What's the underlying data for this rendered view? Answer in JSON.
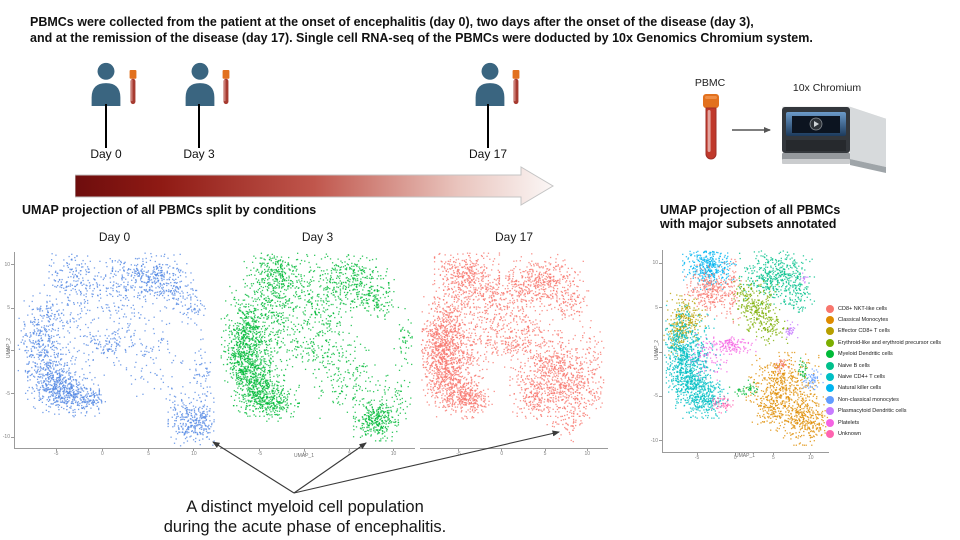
{
  "intro": {
    "line1": "PBMCs were collected from the patient at the onset of encephalitis (day 0), two days after the onset of the disease (day 3),",
    "line2": "and at the remission of the disease (day 17). Single cell RNA-seq of the PBMCs were doducted by 10x Genomics Chromium system."
  },
  "timeline": {
    "days": [
      {
        "label": "Day 0"
      },
      {
        "label": "Day 3"
      },
      {
        "label": "Day 17"
      }
    ]
  },
  "workflow": {
    "sample_label": "PBMC",
    "machine_label": "10x Chromium"
  },
  "split_section": {
    "title": "UMAP projection of all PBMCs split by conditions"
  },
  "annotated_section": {
    "line1": "UMAP projection of all PBMCs",
    "line2": "with major subsets annotated"
  },
  "annotation": {
    "line1": "A distinct myeloid cell population",
    "line2": "during the acute phase of encephalitis."
  },
  "legend": {
    "items": [
      {
        "label": "CD8+ NKT-like cells",
        "color": "#F8766D"
      },
      {
        "label": "Classical Monocytes",
        "color": "#DE8C00"
      },
      {
        "label": "Effector CD8+ T cells",
        "color": "#B79F00"
      },
      {
        "label": "Erythroid-like and erythroid precursor cells",
        "color": "#7CAE00"
      },
      {
        "label": "Myeloid Dendritic cells",
        "color": "#00BA38"
      },
      {
        "label": "Naive B cells",
        "color": "#00C08B"
      },
      {
        "label": "Naive CD4+ T cells",
        "color": "#00BFC4"
      },
      {
        "label": "Natural killer  cells",
        "color": "#00B4F0"
      },
      {
        "label": "Non-classical monocytes",
        "color": "#619CFF"
      },
      {
        "label": "Plasmacytoid Dendritic cells",
        "color": "#C77CFF"
      },
      {
        "label": "Platelets",
        "color": "#F564E3"
      },
      {
        "label": "Unknown",
        "color": "#FF64B0"
      }
    ]
  },
  "colors": {
    "day0_points": "#5488e4",
    "day3_points": "#00ba38",
    "day17_points": "#f8766d",
    "person_icon": "#3a6580",
    "tube_cap": "#e2711e",
    "tube_body": "#a63a30",
    "timeline_gradient_start": "#6e0d0d",
    "timeline_gradient_end": "#fbf7f6"
  },
  "chart_data": {
    "type": "scatter",
    "note": "UMAP embeddings; clusters given as [x,y,rx,ry,n(,color)] in normalized panel coords (y down)",
    "xlabel": "UMAP_1",
    "ylabel": "UMAP_2",
    "xticks": [
      "-5",
      "0",
      "5",
      "10"
    ],
    "xtick_pos": [
      0.205,
      0.435,
      0.665,
      0.89
    ],
    "yticks": [
      "10",
      "5",
      "0",
      "-5",
      "-10"
    ],
    "ytick_pos": [
      0.066,
      0.286,
      0.505,
      0.724,
      0.944
    ],
    "panels": [
      {
        "id": "day0",
        "title": "Day 0",
        "color": "#5488e4",
        "axes": {
          "left": true,
          "bottom": true
        },
        "clusters": [
          [
            0.29,
            0.12,
            0.07,
            0.055,
            110
          ],
          [
            0.45,
            0.1,
            0.09,
            0.055,
            55
          ],
          [
            0.68,
            0.13,
            0.085,
            0.055,
            300
          ],
          [
            0.8,
            0.21,
            0.05,
            0.045,
            90
          ],
          [
            0.88,
            0.28,
            0.035,
            0.04,
            45
          ],
          [
            0.3,
            0.25,
            0.055,
            0.07,
            75
          ],
          [
            0.16,
            0.34,
            0.05,
            0.07,
            110
          ],
          [
            0.12,
            0.45,
            0.045,
            0.07,
            110
          ],
          [
            0.14,
            0.56,
            0.05,
            0.07,
            150
          ],
          [
            0.19,
            0.66,
            0.055,
            0.06,
            260
          ],
          [
            0.27,
            0.72,
            0.065,
            0.05,
            280
          ],
          [
            0.35,
            0.76,
            0.05,
            0.035,
            110
          ],
          [
            0.33,
            0.45,
            0.13,
            0.12,
            110
          ],
          [
            0.47,
            0.47,
            0.055,
            0.03,
            70
          ],
          [
            0.57,
            0.3,
            0.08,
            0.08,
            65
          ],
          [
            0.5,
            0.2,
            0.05,
            0.05,
            40
          ],
          [
            0.65,
            0.45,
            0.06,
            0.06,
            40
          ],
          [
            0.71,
            0.6,
            0.08,
            0.08,
            50
          ],
          [
            0.93,
            0.62,
            0.03,
            0.1,
            65
          ],
          [
            0.9,
            0.87,
            0.06,
            0.055,
            280
          ],
          [
            0.81,
            0.79,
            0.05,
            0.05,
            40
          ]
        ]
      },
      {
        "id": "day3",
        "title": "Day 3",
        "color": "#00ba38",
        "axes": {
          "left": false,
          "bottom": true
        },
        "clusters": [
          [
            0.27,
            0.12,
            0.065,
            0.065,
            280
          ],
          [
            0.42,
            0.13,
            0.07,
            0.06,
            60
          ],
          [
            0.67,
            0.15,
            0.085,
            0.065,
            330
          ],
          [
            0.8,
            0.24,
            0.05,
            0.045,
            100
          ],
          [
            0.3,
            0.26,
            0.055,
            0.07,
            120
          ],
          [
            0.15,
            0.36,
            0.055,
            0.08,
            220
          ],
          [
            0.11,
            0.48,
            0.045,
            0.08,
            260
          ],
          [
            0.14,
            0.6,
            0.05,
            0.08,
            320
          ],
          [
            0.2,
            0.7,
            0.055,
            0.06,
            320
          ],
          [
            0.28,
            0.76,
            0.055,
            0.045,
            200
          ],
          [
            0.22,
            0.5,
            0.075,
            0.1,
            160
          ],
          [
            0.36,
            0.4,
            0.1,
            0.1,
            90
          ],
          [
            0.46,
            0.25,
            0.075,
            0.075,
            75
          ],
          [
            0.55,
            0.35,
            0.065,
            0.075,
            85
          ],
          [
            0.47,
            0.5,
            0.05,
            0.035,
            50
          ],
          [
            0.6,
            0.55,
            0.075,
            0.075,
            85
          ],
          [
            0.68,
            0.68,
            0.075,
            0.075,
            110
          ],
          [
            0.8,
            0.86,
            0.05,
            0.045,
            290
          ],
          [
            0.9,
            0.75,
            0.045,
            0.06,
            55
          ],
          [
            0.95,
            0.45,
            0.025,
            0.07,
            45
          ]
        ]
      },
      {
        "id": "day17",
        "title": "Day 17",
        "color": "#f8766d",
        "axes": {
          "left": false,
          "bottom": true
        },
        "clusters": [
          [
            0.25,
            0.12,
            0.075,
            0.07,
            420
          ],
          [
            0.38,
            0.22,
            0.05,
            0.055,
            90
          ],
          [
            0.65,
            0.15,
            0.095,
            0.065,
            380
          ],
          [
            0.8,
            0.25,
            0.05,
            0.045,
            90
          ],
          [
            0.15,
            0.35,
            0.06,
            0.08,
            260
          ],
          [
            0.1,
            0.48,
            0.05,
            0.085,
            280
          ],
          [
            0.13,
            0.62,
            0.055,
            0.075,
            300
          ],
          [
            0.2,
            0.72,
            0.06,
            0.055,
            260
          ],
          [
            0.28,
            0.76,
            0.05,
            0.04,
            140
          ],
          [
            0.19,
            0.52,
            0.075,
            0.095,
            260
          ],
          [
            0.33,
            0.42,
            0.1,
            0.095,
            120
          ],
          [
            0.45,
            0.33,
            0.065,
            0.065,
            120
          ],
          [
            0.52,
            0.22,
            0.05,
            0.05,
            70
          ],
          [
            0.47,
            0.48,
            0.05,
            0.03,
            60
          ],
          [
            0.58,
            0.42,
            0.055,
            0.055,
            90
          ],
          [
            0.72,
            0.62,
            0.105,
            0.095,
            650
          ],
          [
            0.85,
            0.72,
            0.055,
            0.055,
            150
          ],
          [
            0.62,
            0.75,
            0.055,
            0.045,
            120
          ],
          [
            0.78,
            0.88,
            0.045,
            0.04,
            55
          ],
          [
            0.92,
            0.5,
            0.028,
            0.065,
            40
          ]
        ]
      },
      {
        "id": "annotated",
        "title": "",
        "axes": {
          "left": true,
          "bottom": true
        },
        "clusters": [
          [
            0.28,
            0.08,
            0.07,
            0.05,
            380,
            "#00B4F0"
          ],
          [
            0.28,
            0.2,
            0.065,
            0.055,
            260,
            "#F8766D"
          ],
          [
            0.42,
            0.2,
            0.022,
            0.07,
            70,
            "#F8766D"
          ],
          [
            0.71,
            0.57,
            0.022,
            0.018,
            35,
            "#F8766D"
          ],
          [
            0.14,
            0.33,
            0.05,
            0.055,
            200,
            "#B79F00"
          ],
          [
            0.08,
            0.42,
            0.032,
            0.045,
            90,
            "#B79F00"
          ],
          [
            0.68,
            0.13,
            0.095,
            0.06,
            430,
            "#00C08B"
          ],
          [
            0.82,
            0.22,
            0.04,
            0.038,
            80,
            "#00C08B"
          ],
          [
            0.85,
            0.14,
            0.012,
            0.016,
            12,
            "#C77CFF"
          ],
          [
            0.77,
            0.4,
            0.018,
            0.022,
            35,
            "#C77CFF"
          ],
          [
            0.56,
            0.28,
            0.06,
            0.055,
            200,
            "#7CAE00"
          ],
          [
            0.64,
            0.38,
            0.048,
            0.048,
            110,
            "#7CAE00"
          ],
          [
            0.5,
            0.22,
            0.035,
            0.035,
            45,
            "#7CAE00"
          ],
          [
            0.41,
            0.47,
            0.065,
            0.02,
            130,
            "#F564E3"
          ],
          [
            0.27,
            0.53,
            0.05,
            0.05,
            85,
            "#F564E3"
          ],
          [
            0.1,
            0.47,
            0.048,
            0.085,
            260,
            "#00BFC4"
          ],
          [
            0.14,
            0.6,
            0.052,
            0.078,
            320,
            "#00BFC4"
          ],
          [
            0.21,
            0.7,
            0.058,
            0.058,
            280,
            "#00BFC4"
          ],
          [
            0.28,
            0.745,
            0.048,
            0.038,
            150,
            "#00BFC4"
          ],
          [
            0.19,
            0.52,
            0.068,
            0.088,
            180,
            "#00BFC4"
          ],
          [
            0.35,
            0.765,
            0.032,
            0.018,
            55,
            "#FF64B0"
          ],
          [
            0.72,
            0.68,
            0.095,
            0.075,
            480,
            "#DE8C00"
          ],
          [
            0.85,
            0.84,
            0.07,
            0.055,
            330,
            "#DE8C00"
          ],
          [
            0.66,
            0.8,
            0.048,
            0.04,
            90,
            "#DE8C00"
          ],
          [
            0.84,
            0.6,
            0.014,
            0.028,
            30,
            "#00BA38"
          ],
          [
            0.53,
            0.68,
            0.02,
            0.018,
            25,
            "#00BA38"
          ],
          [
            0.47,
            0.7,
            0.03,
            0.01,
            20,
            "#00BA38"
          ],
          [
            0.9,
            0.64,
            0.028,
            0.022,
            55,
            "#619CFF"
          ]
        ]
      }
    ]
  }
}
